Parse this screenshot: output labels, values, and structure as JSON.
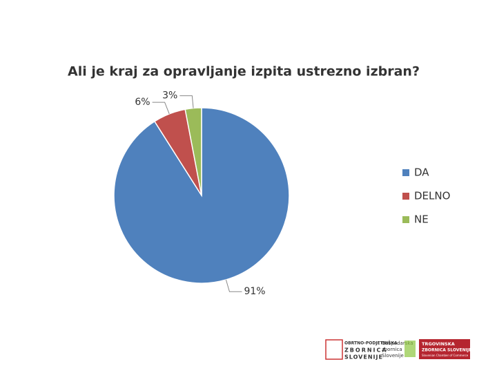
{
  "chart_data": {
    "type": "pie",
    "title": "Ali je kraj za opravljanje izpita ustrezno izbran?",
    "categories": [
      "DA",
      "DELNO",
      "NE"
    ],
    "values": [
      91,
      6,
      3
    ],
    "value_labels": [
      "91%",
      "6%",
      "3%"
    ],
    "colors": [
      "#4f81bd",
      "#c0504d",
      "#9bbb59"
    ],
    "legend": "right"
  },
  "logos": [
    {
      "lines": [
        "OBRTNO-PODJETNIŠKA",
        "ZBORNICA",
        "SLOVENIJE"
      ]
    },
    {
      "lines": [
        "Gospodarska",
        "zbornica",
        "Slovenije"
      ]
    },
    {
      "lines": [
        "TRGOVINSKA",
        "ZBORNICA SLOVENIJE",
        "Slovenian Chamber of Commerce"
      ]
    }
  ]
}
